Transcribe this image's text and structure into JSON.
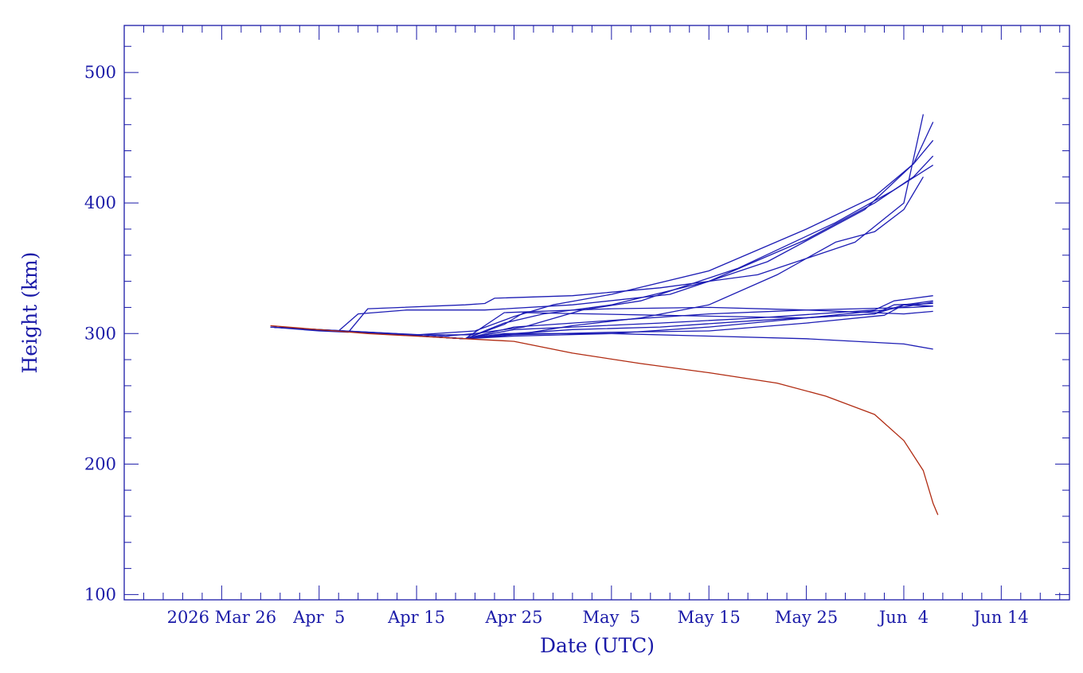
{
  "chart_data": {
    "type": "line",
    "xlabel": "Date (UTC)",
    "ylabel": "Height (km)",
    "xlim": [
      "2026-03-16",
      "2026-06-21"
    ],
    "ylim": [
      96,
      536
    ],
    "xticks": [
      {
        "date": "2026-03-26",
        "label": "2026 Mar 26"
      },
      {
        "date": "2026-04-05",
        "label": "Apr  5"
      },
      {
        "date": "2026-04-15",
        "label": "Apr 15"
      },
      {
        "date": "2026-04-25",
        "label": "Apr 25"
      },
      {
        "date": "2026-05-05",
        "label": "May  5"
      },
      {
        "date": "2026-05-15",
        "label": "May 15"
      },
      {
        "date": "2026-05-25",
        "label": "May 25"
      },
      {
        "date": "2026-06-04",
        "label": "Jun  4"
      },
      {
        "date": "2026-06-14",
        "label": "Jun 14"
      }
    ],
    "yticks": [
      100,
      200,
      300,
      400,
      500
    ],
    "grid": false,
    "colors": {
      "axis": "#1a1aa8",
      "blue_series": "#1c1cb4",
      "red_series": "#b02a10"
    },
    "series": [
      {
        "color": "#b02a10",
        "points": [
          [
            "2026-03-31",
            306
          ],
          [
            "2026-04-10",
            300
          ],
          [
            "2026-04-20",
            296
          ],
          [
            "2026-04-25",
            294
          ],
          [
            "2026-05-01",
            285
          ],
          [
            "2026-05-08",
            277
          ],
          [
            "2026-05-15",
            270
          ],
          [
            "2026-05-22",
            262
          ],
          [
            "2026-05-27",
            252
          ],
          [
            "2026-06-01",
            238
          ],
          [
            "2026-06-04",
            218
          ],
          [
            "2026-06-06",
            195
          ],
          [
            "2026-06-07",
            170
          ],
          [
            "2026-06-07T12:00",
            161
          ]
        ]
      },
      {
        "color": "#1c1cb4",
        "points": [
          [
            "2026-03-31",
            305
          ],
          [
            "2026-04-05",
            302
          ],
          [
            "2026-04-08",
            301
          ],
          [
            "2026-04-10",
            319
          ],
          [
            "2026-04-20",
            322
          ],
          [
            "2026-04-22",
            323
          ],
          [
            "2026-04-23",
            327
          ],
          [
            "2026-05-01",
            329
          ],
          [
            "2026-05-10",
            335
          ],
          [
            "2026-05-20",
            345
          ],
          [
            "2026-05-30",
            370
          ],
          [
            "2026-06-04",
            400
          ],
          [
            "2026-06-06",
            468
          ]
        ]
      },
      {
        "color": "#1c1cb4",
        "points": [
          [
            "2026-03-31",
            305
          ],
          [
            "2026-04-07",
            302
          ],
          [
            "2026-04-09",
            315
          ],
          [
            "2026-04-14",
            318
          ],
          [
            "2026-04-22",
            318
          ],
          [
            "2026-05-01",
            322
          ],
          [
            "2026-05-11",
            330
          ],
          [
            "2026-05-21",
            355
          ],
          [
            "2026-05-31",
            395
          ],
          [
            "2026-06-05",
            430
          ],
          [
            "2026-06-07",
            462
          ]
        ]
      },
      {
        "color": "#1c1cb4",
        "points": [
          [
            "2026-03-31",
            305
          ],
          [
            "2026-04-15",
            299
          ],
          [
            "2026-04-21",
            302
          ],
          [
            "2026-04-25",
            313
          ],
          [
            "2026-04-29",
            322
          ],
          [
            "2026-05-05",
            330
          ],
          [
            "2026-05-15",
            348
          ],
          [
            "2026-05-25",
            380
          ],
          [
            "2026-06-01",
            405
          ],
          [
            "2026-06-05",
            430
          ],
          [
            "2026-06-07",
            448
          ]
        ]
      },
      {
        "color": "#1c1cb4",
        "points": [
          [
            "2026-03-31",
            305
          ],
          [
            "2026-04-15",
            299
          ],
          [
            "2026-04-21",
            299
          ],
          [
            "2026-04-24",
            308
          ],
          [
            "2026-04-28",
            315
          ],
          [
            "2026-05-05",
            322
          ],
          [
            "2026-05-15",
            340
          ],
          [
            "2026-05-25",
            372
          ],
          [
            "2026-06-01",
            400
          ],
          [
            "2026-06-05",
            420
          ],
          [
            "2026-06-07",
            436
          ]
        ]
      },
      {
        "color": "#1c1cb4",
        "points": [
          [
            "2026-03-31",
            305
          ],
          [
            "2026-04-18",
            298
          ],
          [
            "2026-04-21",
            300
          ],
          [
            "2026-04-26",
            305
          ],
          [
            "2026-05-02",
            318
          ],
          [
            "2026-05-08",
            325
          ],
          [
            "2026-05-18",
            350
          ],
          [
            "2026-05-28",
            385
          ],
          [
            "2026-06-03",
            410
          ],
          [
            "2026-06-07",
            429
          ]
        ]
      },
      {
        "color": "#1c1cb4",
        "points": [
          [
            "2026-03-31",
            305
          ],
          [
            "2026-04-20",
            296
          ],
          [
            "2026-04-26",
            300
          ],
          [
            "2026-05-01",
            306
          ],
          [
            "2026-05-08",
            312
          ],
          [
            "2026-05-15",
            322
          ],
          [
            "2026-05-22",
            345
          ],
          [
            "2026-05-28",
            370
          ],
          [
            "2026-06-01",
            378
          ],
          [
            "2026-06-04",
            395
          ],
          [
            "2026-06-06",
            420
          ]
        ]
      },
      {
        "color": "#1c1cb4",
        "points": [
          [
            "2026-03-31",
            305
          ],
          [
            "2026-04-20",
            296
          ],
          [
            "2026-04-25",
            303
          ],
          [
            "2026-05-01",
            305
          ],
          [
            "2026-05-10",
            308
          ],
          [
            "2026-05-20",
            312
          ],
          [
            "2026-06-01",
            318
          ],
          [
            "2026-06-03",
            325
          ],
          [
            "2026-06-07",
            329
          ]
        ]
      },
      {
        "color": "#1c1cb4",
        "points": [
          [
            "2026-03-31",
            305
          ],
          [
            "2026-04-20",
            296
          ],
          [
            "2026-04-25",
            300
          ],
          [
            "2026-05-01",
            303
          ],
          [
            "2026-05-10",
            305
          ],
          [
            "2026-05-20",
            310
          ],
          [
            "2026-06-01",
            315
          ],
          [
            "2026-06-04",
            322
          ],
          [
            "2026-06-07",
            325
          ]
        ]
      },
      {
        "color": "#1c1cb4",
        "points": [
          [
            "2026-03-31",
            305
          ],
          [
            "2026-04-20",
            296
          ],
          [
            "2026-04-25",
            298
          ],
          [
            "2026-05-05",
            300
          ],
          [
            "2026-05-15",
            305
          ],
          [
            "2026-05-25",
            312
          ],
          [
            "2026-06-02",
            318
          ],
          [
            "2026-06-07",
            324
          ]
        ]
      },
      {
        "color": "#1c1cb4",
        "points": [
          [
            "2026-03-31",
            305
          ],
          [
            "2026-04-20",
            296
          ],
          [
            "2026-04-25",
            299
          ],
          [
            "2026-05-05",
            301
          ],
          [
            "2026-05-15",
            302
          ],
          [
            "2026-05-25",
            308
          ],
          [
            "2026-06-02",
            314
          ],
          [
            "2026-06-04",
            322
          ],
          [
            "2026-06-07",
            321
          ]
        ]
      },
      {
        "color": "#1c1cb4",
        "points": [
          [
            "2026-03-31",
            305
          ],
          [
            "2026-04-20",
            296
          ],
          [
            "2026-04-24",
            307
          ],
          [
            "2026-04-26",
            316
          ],
          [
            "2026-05-10",
            314
          ],
          [
            "2026-05-25",
            312
          ],
          [
            "2026-06-01",
            315
          ],
          [
            "2026-06-03",
            322
          ],
          [
            "2026-06-07",
            323
          ]
        ]
      },
      {
        "color": "#1c1cb4",
        "points": [
          [
            "2026-03-31",
            305
          ],
          [
            "2026-04-20",
            296
          ],
          [
            "2026-04-24",
            316
          ],
          [
            "2026-05-05",
            319
          ],
          [
            "2026-05-15",
            320
          ],
          [
            "2026-05-25",
            318
          ],
          [
            "2026-06-04",
            315
          ],
          [
            "2026-06-07",
            317
          ]
        ]
      },
      {
        "color": "#1c1cb4",
        "points": [
          [
            "2026-03-31",
            305
          ],
          [
            "2026-04-20",
            296
          ],
          [
            "2026-04-25",
            305
          ],
          [
            "2026-05-05",
            310
          ],
          [
            "2026-05-15",
            315
          ],
          [
            "2026-05-25",
            318
          ],
          [
            "2026-06-05",
            320
          ],
          [
            "2026-06-07",
            321
          ]
        ]
      },
      {
        "color": "#1c1cb4",
        "points": [
          [
            "2026-03-31",
            305
          ],
          [
            "2026-04-20",
            296
          ],
          [
            "2026-04-24",
            300
          ],
          [
            "2026-05-05",
            300
          ],
          [
            "2026-05-15",
            298
          ],
          [
            "2026-05-25",
            296
          ],
          [
            "2026-06-04",
            292
          ],
          [
            "2026-06-07",
            288
          ]
        ]
      }
    ]
  }
}
